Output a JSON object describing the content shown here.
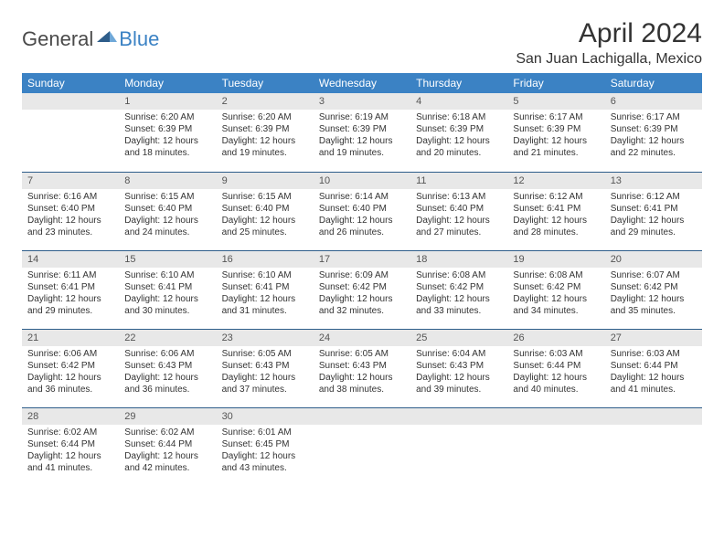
{
  "brand": {
    "part1": "General",
    "part2": "Blue"
  },
  "title": "April 2024",
  "location": "San Juan Lachigalla, Mexico",
  "colors": {
    "header_bg": "#3b82c4",
    "header_text": "#ffffff",
    "daynum_band_bg": "#e8e8e8",
    "rule": "#2e5d8a",
    "text": "#333333",
    "background": "#ffffff"
  },
  "weekdays": [
    "Sunday",
    "Monday",
    "Tuesday",
    "Wednesday",
    "Thursday",
    "Friday",
    "Saturday"
  ],
  "weeks": [
    [
      {
        "n": "",
        "sr": "",
        "ss": "",
        "dl": ""
      },
      {
        "n": "1",
        "sr": "Sunrise: 6:20 AM",
        "ss": "Sunset: 6:39 PM",
        "dl": "Daylight: 12 hours and 18 minutes."
      },
      {
        "n": "2",
        "sr": "Sunrise: 6:20 AM",
        "ss": "Sunset: 6:39 PM",
        "dl": "Daylight: 12 hours and 19 minutes."
      },
      {
        "n": "3",
        "sr": "Sunrise: 6:19 AM",
        "ss": "Sunset: 6:39 PM",
        "dl": "Daylight: 12 hours and 19 minutes."
      },
      {
        "n": "4",
        "sr": "Sunrise: 6:18 AM",
        "ss": "Sunset: 6:39 PM",
        "dl": "Daylight: 12 hours and 20 minutes."
      },
      {
        "n": "5",
        "sr": "Sunrise: 6:17 AM",
        "ss": "Sunset: 6:39 PM",
        "dl": "Daylight: 12 hours and 21 minutes."
      },
      {
        "n": "6",
        "sr": "Sunrise: 6:17 AM",
        "ss": "Sunset: 6:39 PM",
        "dl": "Daylight: 12 hours and 22 minutes."
      }
    ],
    [
      {
        "n": "7",
        "sr": "Sunrise: 6:16 AM",
        "ss": "Sunset: 6:40 PM",
        "dl": "Daylight: 12 hours and 23 minutes."
      },
      {
        "n": "8",
        "sr": "Sunrise: 6:15 AM",
        "ss": "Sunset: 6:40 PM",
        "dl": "Daylight: 12 hours and 24 minutes."
      },
      {
        "n": "9",
        "sr": "Sunrise: 6:15 AM",
        "ss": "Sunset: 6:40 PM",
        "dl": "Daylight: 12 hours and 25 minutes."
      },
      {
        "n": "10",
        "sr": "Sunrise: 6:14 AM",
        "ss": "Sunset: 6:40 PM",
        "dl": "Daylight: 12 hours and 26 minutes."
      },
      {
        "n": "11",
        "sr": "Sunrise: 6:13 AM",
        "ss": "Sunset: 6:40 PM",
        "dl": "Daylight: 12 hours and 27 minutes."
      },
      {
        "n": "12",
        "sr": "Sunrise: 6:12 AM",
        "ss": "Sunset: 6:41 PM",
        "dl": "Daylight: 12 hours and 28 minutes."
      },
      {
        "n": "13",
        "sr": "Sunrise: 6:12 AM",
        "ss": "Sunset: 6:41 PM",
        "dl": "Daylight: 12 hours and 29 minutes."
      }
    ],
    [
      {
        "n": "14",
        "sr": "Sunrise: 6:11 AM",
        "ss": "Sunset: 6:41 PM",
        "dl": "Daylight: 12 hours and 29 minutes."
      },
      {
        "n": "15",
        "sr": "Sunrise: 6:10 AM",
        "ss": "Sunset: 6:41 PM",
        "dl": "Daylight: 12 hours and 30 minutes."
      },
      {
        "n": "16",
        "sr": "Sunrise: 6:10 AM",
        "ss": "Sunset: 6:41 PM",
        "dl": "Daylight: 12 hours and 31 minutes."
      },
      {
        "n": "17",
        "sr": "Sunrise: 6:09 AM",
        "ss": "Sunset: 6:42 PM",
        "dl": "Daylight: 12 hours and 32 minutes."
      },
      {
        "n": "18",
        "sr": "Sunrise: 6:08 AM",
        "ss": "Sunset: 6:42 PM",
        "dl": "Daylight: 12 hours and 33 minutes."
      },
      {
        "n": "19",
        "sr": "Sunrise: 6:08 AM",
        "ss": "Sunset: 6:42 PM",
        "dl": "Daylight: 12 hours and 34 minutes."
      },
      {
        "n": "20",
        "sr": "Sunrise: 6:07 AM",
        "ss": "Sunset: 6:42 PM",
        "dl": "Daylight: 12 hours and 35 minutes."
      }
    ],
    [
      {
        "n": "21",
        "sr": "Sunrise: 6:06 AM",
        "ss": "Sunset: 6:42 PM",
        "dl": "Daylight: 12 hours and 36 minutes."
      },
      {
        "n": "22",
        "sr": "Sunrise: 6:06 AM",
        "ss": "Sunset: 6:43 PM",
        "dl": "Daylight: 12 hours and 36 minutes."
      },
      {
        "n": "23",
        "sr": "Sunrise: 6:05 AM",
        "ss": "Sunset: 6:43 PM",
        "dl": "Daylight: 12 hours and 37 minutes."
      },
      {
        "n": "24",
        "sr": "Sunrise: 6:05 AM",
        "ss": "Sunset: 6:43 PM",
        "dl": "Daylight: 12 hours and 38 minutes."
      },
      {
        "n": "25",
        "sr": "Sunrise: 6:04 AM",
        "ss": "Sunset: 6:43 PM",
        "dl": "Daylight: 12 hours and 39 minutes."
      },
      {
        "n": "26",
        "sr": "Sunrise: 6:03 AM",
        "ss": "Sunset: 6:44 PM",
        "dl": "Daylight: 12 hours and 40 minutes."
      },
      {
        "n": "27",
        "sr": "Sunrise: 6:03 AM",
        "ss": "Sunset: 6:44 PM",
        "dl": "Daylight: 12 hours and 41 minutes."
      }
    ],
    [
      {
        "n": "28",
        "sr": "Sunrise: 6:02 AM",
        "ss": "Sunset: 6:44 PM",
        "dl": "Daylight: 12 hours and 41 minutes."
      },
      {
        "n": "29",
        "sr": "Sunrise: 6:02 AM",
        "ss": "Sunset: 6:44 PM",
        "dl": "Daylight: 12 hours and 42 minutes."
      },
      {
        "n": "30",
        "sr": "Sunrise: 6:01 AM",
        "ss": "Sunset: 6:45 PM",
        "dl": "Daylight: 12 hours and 43 minutes."
      },
      {
        "n": "",
        "sr": "",
        "ss": "",
        "dl": ""
      },
      {
        "n": "",
        "sr": "",
        "ss": "",
        "dl": ""
      },
      {
        "n": "",
        "sr": "",
        "ss": "",
        "dl": ""
      },
      {
        "n": "",
        "sr": "",
        "ss": "",
        "dl": ""
      }
    ]
  ]
}
